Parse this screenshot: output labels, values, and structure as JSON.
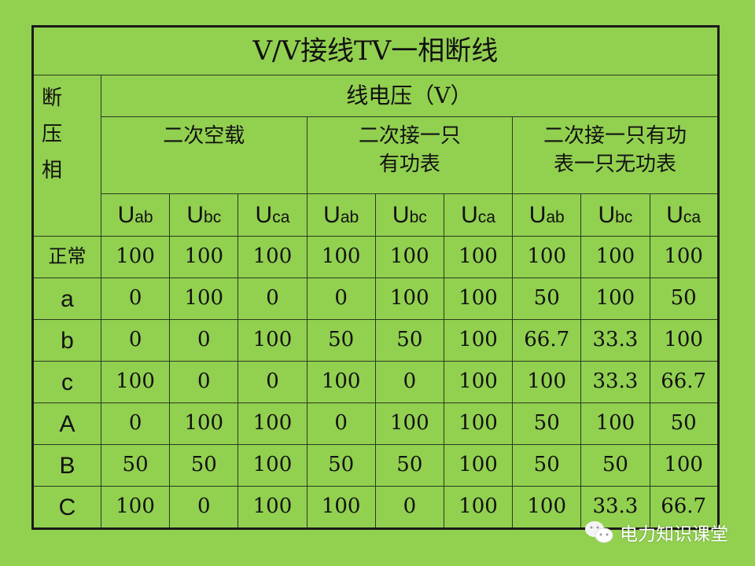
{
  "title": "V/V接线TV一相断线",
  "side_header": [
    "断",
    "压",
    "相"
  ],
  "voltage_header": "线电压（V）",
  "groups": [
    {
      "lines": [
        "二次空载"
      ]
    },
    {
      "lines": [
        "二次接一只",
        "有功表"
      ]
    },
    {
      "lines": [
        "二次接一只有功",
        "表一只无功表"
      ]
    }
  ],
  "columns": [
    {
      "main": "U",
      "sub": "ab"
    },
    {
      "main": "U",
      "sub": "bc"
    },
    {
      "main": "U",
      "sub": "ca"
    },
    {
      "main": "U",
      "sub": "ab"
    },
    {
      "main": "U",
      "sub": "bc"
    },
    {
      "main": "U",
      "sub": "ca"
    },
    {
      "main": "U",
      "sub": "ab"
    },
    {
      "main": "U",
      "sub": "bc"
    },
    {
      "main": "U",
      "sub": "ca"
    }
  ],
  "rows": [
    {
      "label": "正常",
      "values": [
        "100",
        "100",
        "100",
        "100",
        "100",
        "100",
        "100",
        "100",
        "100"
      ]
    },
    {
      "label": "a",
      "values": [
        "0",
        "100",
        "0",
        "0",
        "100",
        "100",
        "50",
        "100",
        "50"
      ]
    },
    {
      "label": "b",
      "values": [
        "0",
        "0",
        "100",
        "50",
        "50",
        "100",
        "66.7",
        "33.3",
        "100"
      ]
    },
    {
      "label": "c",
      "values": [
        "100",
        "0",
        "0",
        "100",
        "0",
        "100",
        "100",
        "33.3",
        "66.7"
      ]
    },
    {
      "label": "A",
      "values": [
        "0",
        "100",
        "100",
        "0",
        "100",
        "100",
        "50",
        "100",
        "50"
      ]
    },
    {
      "label": "B",
      "values": [
        "50",
        "50",
        "100",
        "50",
        "50",
        "100",
        "50",
        "50",
        "100"
      ]
    },
    {
      "label": "C",
      "values": [
        "100",
        "0",
        "100",
        "100",
        "0",
        "100",
        "100",
        "33.3",
        "66.7"
      ]
    }
  ],
  "watermark": {
    "text": "电力知识课堂",
    "icon": "wechat-icon"
  },
  "colors": {
    "background": "#92d050",
    "border": "#1a1a1a"
  }
}
